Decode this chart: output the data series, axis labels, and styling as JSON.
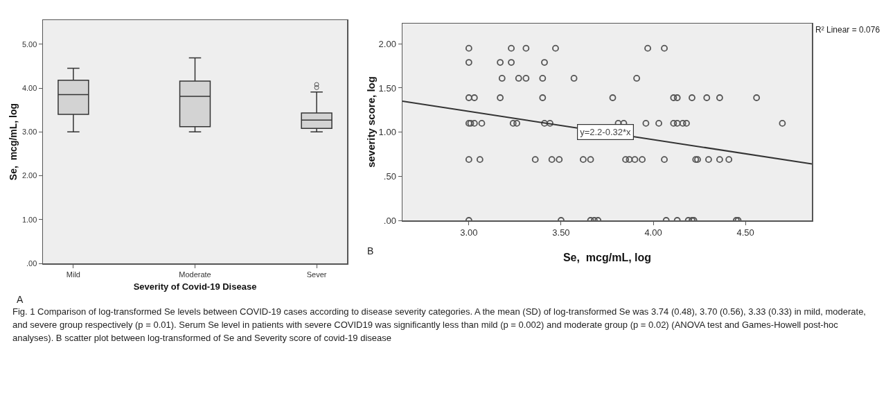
{
  "chart_data": [
    {
      "type": "box",
      "xlabel": "Severity of Covid-19 Disease",
      "ylabel": "Se,  mcg/mL, log",
      "categories": [
        "Mild",
        "Moderate",
        "Sever"
      ],
      "color": "#d3d3d3",
      "boxes": [
        {
          "low": 3.0,
          "q1": 3.4,
          "median": 3.85,
          "q3": 4.18,
          "high": 4.45
        },
        {
          "low": 3.0,
          "q1": 3.12,
          "median": 3.81,
          "q3": 4.16,
          "high": 4.69
        },
        {
          "low": 3.0,
          "q1": 3.08,
          "median": 3.27,
          "q3": 3.43,
          "high": 3.91,
          "outliers": [
            4.01,
            4.08
          ]
        }
      ],
      "ylim": [
        0,
        5.55
      ],
      "yticks": [
        {
          "value": 0,
          "label": ".00"
        },
        {
          "value": 1,
          "label": "1.00"
        },
        {
          "value": 2,
          "label": "2.00"
        },
        {
          "value": 3,
          "label": "3.00"
        },
        {
          "value": 4,
          "label": "4.00"
        },
        {
          "value": 5,
          "label": "5.00"
        }
      ],
      "annotations": [
        "A",
        "Fig. 1  Comparison of log-transformed Se levels between COVID-19 cases according to disease severity categories. A the mean (SD) of log-transformed Se was 3.74 (0.48), 3.70 (0.56), 3.33 (0.33) in mild, moderate, and severe group respectively (p = 0.01). Serum Se level in patients with severe COVID19 was significantly less than mild (p = 0.002) and moderate group (p = 0.02) (ANOVA test and Games-Howell post-hoc analyses). B scatter plot between log-transformed of Se and Severity score of covid-19 disease"
      ]
    },
    {
      "type": "scatter",
      "xlabel": "Se,  mcg/mL, log",
      "ylabel": "severity score, log",
      "series": [
        {
          "type": "scatter",
          "color": "#555555",
          "marker": "circle",
          "x": [
            3.0,
            3.23,
            3.31,
            3.47,
            3.97,
            4.06,
            3.0,
            3.17,
            3.23,
            3.41,
            3.18,
            3.27,
            3.31,
            3.4,
            3.57,
            3.91,
            3.0,
            3.03,
            3.17,
            3.4,
            3.78,
            4.11,
            4.13,
            4.21,
            4.29,
            4.36,
            4.56,
            3.0,
            3.01,
            3.03,
            3.07,
            3.24,
            3.26,
            3.41,
            3.44,
            3.81,
            3.84,
            3.96,
            4.03,
            4.11,
            4.13,
            4.16,
            4.18,
            4.7,
            3.0,
            3.06,
            3.36,
            3.45,
            3.49,
            3.62,
            3.66,
            3.85,
            3.87,
            3.9,
            3.94,
            4.06,
            4.23,
            4.24,
            4.3,
            4.36,
            4.41,
            3.0,
            3.5,
            3.66,
            3.68,
            3.7,
            4.07,
            4.13,
            4.19,
            4.21,
            4.22,
            4.45,
            4.46
          ],
          "values": [
            1.95,
            1.95,
            1.95,
            1.95,
            1.95,
            1.95,
            1.79,
            1.79,
            1.79,
            1.79,
            1.61,
            1.61,
            1.61,
            1.61,
            1.61,
            1.61,
            1.39,
            1.39,
            1.39,
            1.39,
            1.39,
            1.39,
            1.39,
            1.39,
            1.39,
            1.39,
            1.39,
            1.1,
            1.1,
            1.1,
            1.1,
            1.1,
            1.1,
            1.1,
            1.1,
            1.1,
            1.1,
            1.1,
            1.1,
            1.1,
            1.1,
            1.1,
            1.1,
            1.1,
            0.69,
            0.69,
            0.69,
            0.69,
            0.69,
            0.69,
            0.69,
            0.69,
            0.69,
            0.69,
            0.69,
            0.69,
            0.69,
            0.69,
            0.69,
            0.69,
            0.69,
            0,
            0,
            0,
            0,
            0,
            0,
            0,
            0,
            0,
            0,
            0,
            0
          ]
        },
        {
          "type": "line",
          "color": "#333333",
          "marker": "none",
          "x": [
            2.64,
            4.86
          ],
          "values": [
            1.35,
            0.64
          ]
        }
      ],
      "xlim": [
        2.64,
        4.86
      ],
      "xticks": [
        {
          "value": 3,
          "label": "3.00"
        },
        {
          "value": 3.5,
          "label": "3.50"
        },
        {
          "value": 4,
          "label": "4.00"
        },
        {
          "value": 4.5,
          "label": "4.50"
        }
      ],
      "ylim": [
        0,
        2.23
      ],
      "yticks": [
        {
          "value": 0,
          "label": ".00"
        },
        {
          "value": 0.5,
          "label": ".50"
        },
        {
          "value": 1,
          "label": "1.00"
        },
        {
          "value": 1.5,
          "label": "1.50"
        },
        {
          "value": 2,
          "label": "2.00"
        }
      ],
      "annotations": [
        "B",
        {
          "text": "y=2.2-0.32*x",
          "x": 3.74,
          "y": 1.0
        },
        "R² Linear = 0.076"
      ]
    }
  ]
}
